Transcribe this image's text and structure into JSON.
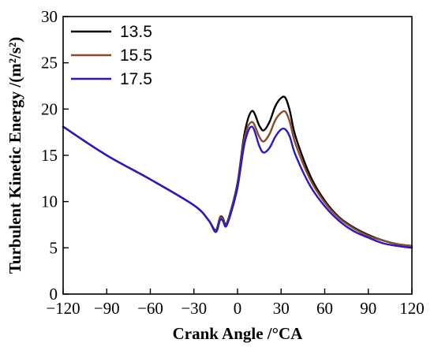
{
  "chart_data": {
    "type": "line",
    "xlabel": "Crank Angle /°CA",
    "ylabel": "Turbulent Kinetic Energy /(m²/s²)",
    "xlim": [
      -120,
      120
    ],
    "ylim": [
      0,
      30
    ],
    "xticks": [
      -120,
      -90,
      -60,
      -30,
      0,
      30,
      60,
      90,
      120
    ],
    "xtick_labels": [
      "−120",
      "−90",
      "−60",
      "−30",
      "0",
      "30",
      "60",
      "90",
      "120"
    ],
    "yticks": [
      0,
      5,
      10,
      15,
      20,
      25,
      30
    ],
    "ytick_labels": [
      "0",
      "5",
      "10",
      "15",
      "20",
      "25",
      "30"
    ],
    "grid": false,
    "legend_position": "top-left",
    "series": [
      {
        "name": "13.5",
        "color": "#000000",
        "x": [
          -120,
          -90,
          -60,
          -30,
          -20,
          -15,
          -12,
          -10,
          -8,
          -5,
          0,
          5,
          10,
          15,
          18,
          22,
          26,
          30,
          33,
          36,
          40,
          50,
          60,
          70,
          80,
          90,
          100,
          110,
          120
        ],
        "y": [
          18.1,
          15.0,
          12.4,
          9.6,
          8.0,
          6.9,
          8.3,
          8.2,
          7.5,
          8.8,
          12.0,
          17.5,
          19.8,
          18.2,
          17.7,
          18.6,
          20.3,
          21.2,
          21.2,
          19.8,
          17.0,
          12.8,
          10.1,
          8.3,
          7.2,
          6.4,
          5.8,
          5.4,
          5.2
        ]
      },
      {
        "name": "15.5",
        "color": "#8b4a2b",
        "x": [
          -120,
          -90,
          -60,
          -30,
          -20,
          -15,
          -12,
          -10,
          -8,
          -5,
          0,
          5,
          10,
          15,
          18,
          22,
          26,
          30,
          33,
          36,
          40,
          50,
          60,
          70,
          80,
          90,
          100,
          110,
          120
        ],
        "y": [
          18.1,
          15.0,
          12.4,
          9.6,
          8.0,
          6.8,
          8.2,
          8.1,
          7.4,
          8.7,
          11.8,
          17.0,
          18.6,
          17.0,
          16.5,
          17.3,
          18.8,
          19.6,
          19.7,
          18.6,
          16.2,
          12.4,
          9.9,
          8.2,
          7.1,
          6.3,
          5.8,
          5.4,
          5.2
        ]
      },
      {
        "name": "17.5",
        "color": "#2a17c9",
        "x": [
          -120,
          -90,
          -60,
          -30,
          -20,
          -15,
          -12,
          -10,
          -8,
          -5,
          0,
          5,
          10,
          15,
          18,
          22,
          26,
          30,
          33,
          36,
          40,
          50,
          60,
          70,
          80,
          90,
          100,
          110,
          120
        ],
        "y": [
          18.1,
          15.0,
          12.4,
          9.6,
          8.0,
          6.7,
          8.0,
          7.9,
          7.3,
          8.5,
          11.5,
          16.4,
          18.1,
          16.0,
          15.3,
          15.8,
          17.0,
          17.8,
          17.8,
          17.0,
          15.0,
          11.7,
          9.5,
          7.9,
          6.8,
          6.1,
          5.5,
          5.2,
          5.0
        ]
      }
    ]
  }
}
